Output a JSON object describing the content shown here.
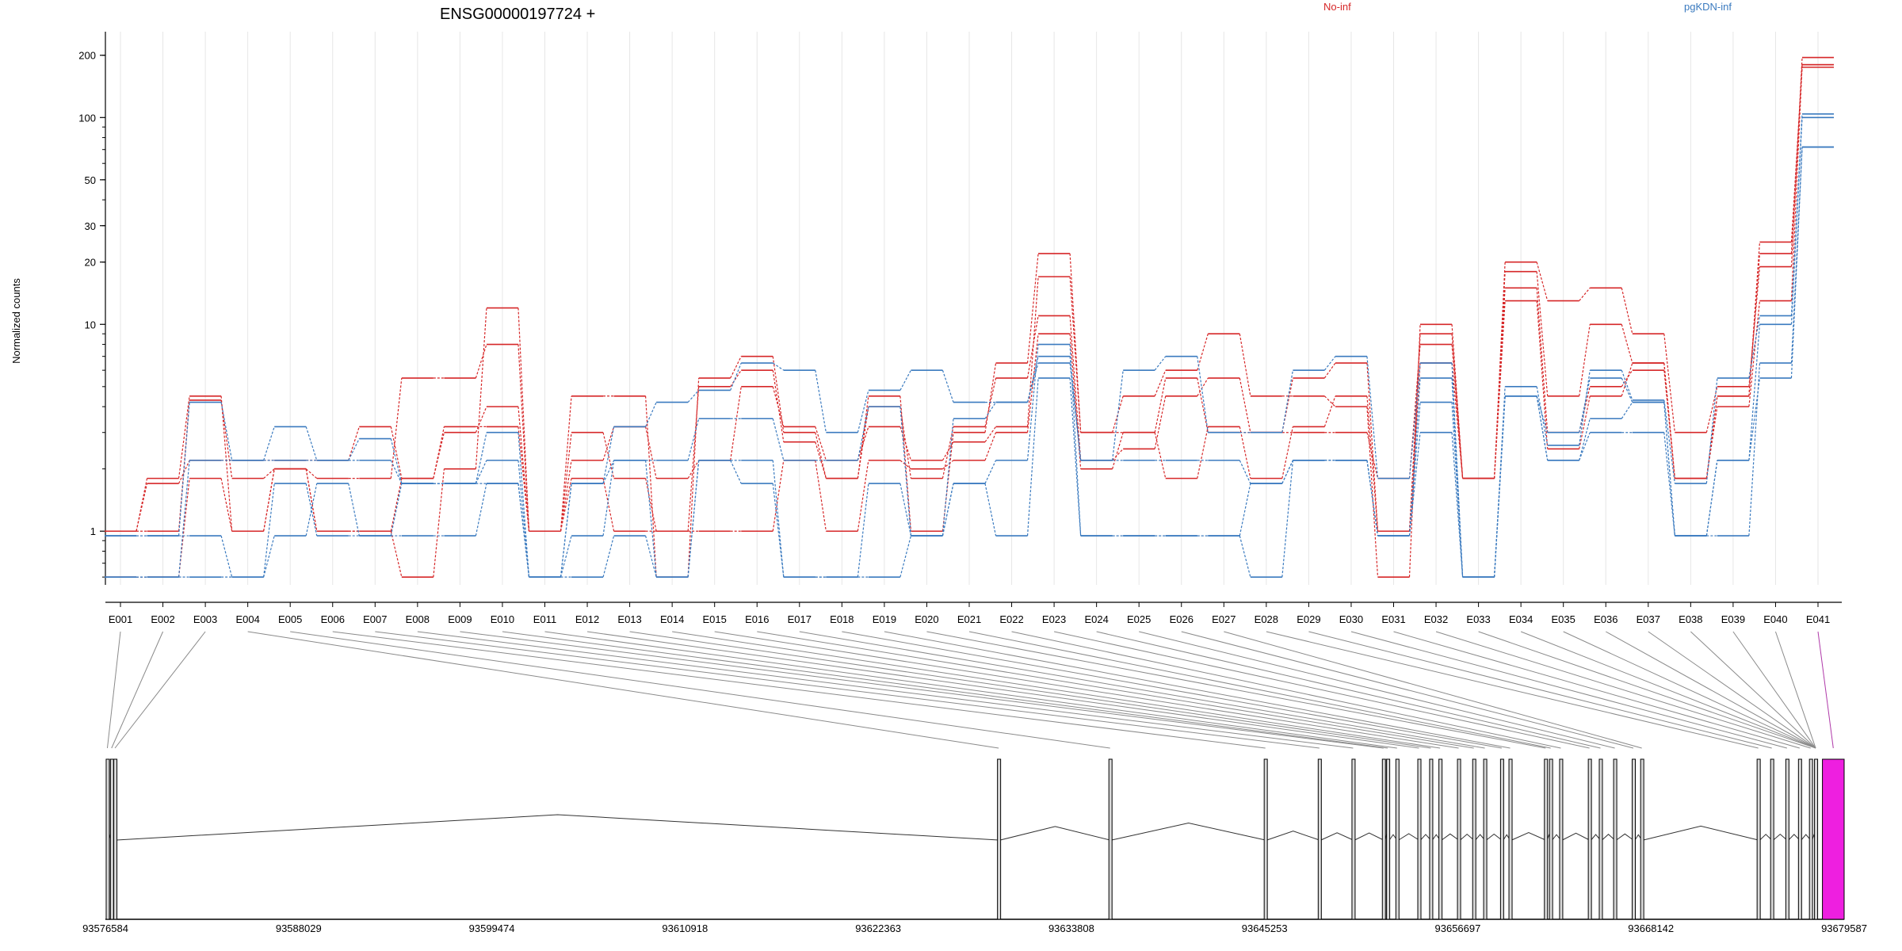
{
  "chart_data": {
    "type": "line",
    "title": "ENSG00000197724 +",
    "ylabel": "Normalized counts",
    "xlabel": "",
    "yscale": "log",
    "ylim": [
      0.55,
      260
    ],
    "yticks": [
      1,
      10,
      20,
      30,
      50,
      100,
      200
    ],
    "grid": true,
    "legend": [
      "No-inf",
      "pgKDN-inf"
    ],
    "legend_placement": "top-right",
    "colors": {
      "No-inf": "#d62728",
      "pgKDN-inf": "#3a7abf",
      "highlight": "#ee1fe0"
    },
    "categories": [
      "E001",
      "E002",
      "E003",
      "E004",
      "E005",
      "E006",
      "E007",
      "E008",
      "E009",
      "E010",
      "E011",
      "E012",
      "E013",
      "E014",
      "E015",
      "E016",
      "E017",
      "E018",
      "E019",
      "E020",
      "E021",
      "E022",
      "E023",
      "E024",
      "E025",
      "E026",
      "E027",
      "E028",
      "E029",
      "E030",
      "E031",
      "E032",
      "E033",
      "E034",
      "E035",
      "E036",
      "E037",
      "E038",
      "E039",
      "E040",
      "E041"
    ],
    "series": [
      {
        "group": "No-inf",
        "values": [
          1,
          1.8,
          4.5,
          1,
          2,
          1,
          1,
          0.6,
          2,
          12,
          1,
          4.5,
          4.5,
          0.6,
          5.5,
          7,
          3,
          1.8,
          4.5,
          1,
          3,
          6.5,
          22,
          3,
          4.5,
          6,
          9,
          4.5,
          4.5,
          4,
          0.6,
          10,
          1.8,
          20,
          13,
          15,
          9,
          3,
          5,
          19,
          195
        ]
      },
      {
        "group": "No-inf",
        "values": [
          1,
          1,
          4.3,
          1.8,
          2,
          1.8,
          1.8,
          5.5,
          5.5,
          8,
          1,
          3,
          1.8,
          1,
          5,
          6,
          2.7,
          1.8,
          4,
          1.8,
          3.2,
          5.5,
          11,
          2.2,
          2.5,
          4.5,
          5.5,
          3,
          5.5,
          6.5,
          1,
          9,
          1.8,
          18,
          4.5,
          10,
          6.5,
          1.8,
          4.5,
          25,
          175
        ]
      },
      {
        "group": "No-inf",
        "values": [
          1,
          1.7,
          2.2,
          2.2,
          2.2,
          2.2,
          3.2,
          1.8,
          3.2,
          3.2,
          1,
          2.2,
          3.2,
          1.8,
          2.2,
          5,
          3.2,
          2.2,
          3.2,
          2.2,
          2.7,
          3.2,
          17,
          3,
          3,
          5.5,
          3,
          3,
          3,
          3,
          1.8,
          8,
          1.8,
          15,
          3,
          5,
          6,
          1.8,
          4.5,
          22,
          180
        ]
      },
      {
        "group": "No-inf",
        "values": [
          0.6,
          0.6,
          1.8,
          1,
          2,
          1,
          1,
          1.8,
          3,
          4,
          1,
          1.8,
          1,
          1,
          1,
          1,
          2.2,
          1,
          2.2,
          2,
          2.2,
          3,
          9,
          2,
          3,
          1.8,
          3.2,
          1.8,
          3.2,
          4.5,
          1,
          6.5,
          1.8,
          13,
          2.5,
          4.5,
          6.5,
          1.8,
          4,
          13,
          180
        ]
      },
      {
        "group": "pgKDN-inf",
        "values": [
          0.95,
          0.95,
          0.95,
          0.6,
          1.7,
          0.95,
          0.95,
          0.95,
          0.95,
          1.7,
          0.6,
          1.7,
          2.2,
          0.6,
          2.2,
          1.7,
          0.6,
          0.6,
          1.7,
          0.95,
          1.7,
          2.2,
          8,
          0.95,
          0.95,
          0.95,
          0.95,
          0.6,
          2.2,
          2.2,
          0.95,
          5.5,
          0.6,
          4.5,
          2.2,
          3.5,
          4.2,
          0.95,
          0.95,
          6.5,
          72
        ]
      },
      {
        "group": "pgKDN-inf",
        "values": [
          0.95,
          0.95,
          4.2,
          2.2,
          2.2,
          2.2,
          2.2,
          1.7,
          1.7,
          1.7,
          0.6,
          0.95,
          2.2,
          2.2,
          3.5,
          3.5,
          2.2,
          2.2,
          4,
          0.95,
          3.5,
          4.2,
          7,
          2.2,
          2.2,
          2.2,
          2.2,
          1.7,
          2.2,
          2.2,
          0.95,
          4.2,
          0.6,
          4.5,
          3,
          5.5,
          4.2,
          0.95,
          2.2,
          10,
          100
        ]
      },
      {
        "group": "pgKDN-inf",
        "values": [
          0.6,
          0.6,
          2.2,
          2.2,
          3.2,
          2.2,
          2.8,
          1.7,
          1.7,
          3,
          0.6,
          1.7,
          3.2,
          4.2,
          4.8,
          6.5,
          6,
          3,
          4.8,
          6,
          4.2,
          4.2,
          6.5,
          2.2,
          6,
          7,
          3,
          3,
          6,
          7,
          1.8,
          6.5,
          0.6,
          5,
          2.6,
          6,
          4.3,
          1.7,
          5.5,
          11,
          104
        ]
      },
      {
        "group": "pgKDN-inf",
        "values": [
          0.6,
          0.6,
          0.6,
          0.6,
          0.95,
          1.7,
          0.95,
          1.7,
          1.7,
          2.2,
          0.6,
          0.6,
          0.95,
          0.6,
          2.2,
          2.2,
          0.6,
          0.6,
          0.6,
          0.95,
          1.7,
          0.95,
          5.5,
          0.95,
          0.95,
          0.95,
          0.95,
          1.7,
          2.2,
          2.2,
          0.95,
          3,
          0.6,
          4.5,
          2.2,
          3,
          3,
          0.95,
          2.2,
          5.5,
          72
        ]
      }
    ],
    "gene_model": {
      "coordinates": [
        "93576584",
        "93588029",
        "93599474",
        "93610918",
        "93622363",
        "93633808",
        "93645253",
        "93656697",
        "93668142",
        "93679587"
      ],
      "exon_positions": [
        93576700,
        93576950,
        93577150,
        93629500,
        93636100,
        93645300,
        93648500,
        93650500,
        93652300,
        93652550,
        93653100,
        93654400,
        93655100,
        93655650,
        93656750,
        93657650,
        93658300,
        93659300,
        93659800,
        93661900,
        93662200,
        93662800,
        93664500,
        93665150,
        93666000,
        93667100,
        93667600,
        93674500,
        93675300,
        93676200,
        93676950,
        93677600,
        93677900
      ],
      "highlight_exon": "E041"
    }
  }
}
